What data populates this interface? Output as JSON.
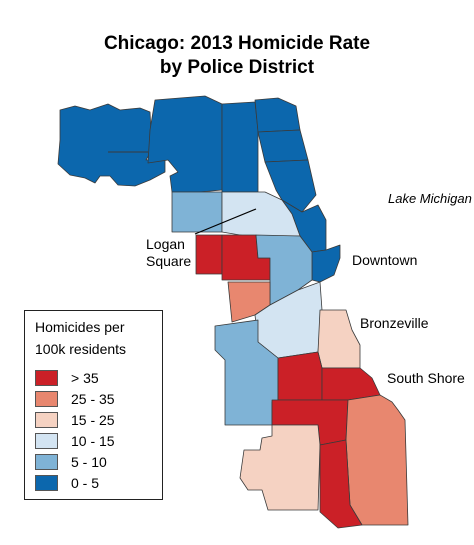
{
  "title": {
    "line1": "Chicago: 2013 Homicide Rate",
    "line2": "by Police District"
  },
  "labels": {
    "lake": "Lake Michigan",
    "logan_square_1": "Logan",
    "logan_square_2": "Square",
    "downtown": "Downtown",
    "bronzeville": "Bronzeville",
    "south_shore": "South Shore"
  },
  "legend": {
    "title_line1": "Homicides per",
    "title_line2": "100k residents",
    "classes": [
      {
        "label": "> 35",
        "color": "#cb2027"
      },
      {
        "label": "25 - 35",
        "color": "#e8876f"
      },
      {
        "label": "15 - 25",
        "color": "#f5d2c2"
      },
      {
        "label": "10 - 15",
        "color": "#d3e4f2"
      },
      {
        "label": "5 - 10",
        "color": "#7fb3d6"
      },
      {
        "label": "0 - 5",
        "color": "#0c67ad"
      }
    ]
  }
}
